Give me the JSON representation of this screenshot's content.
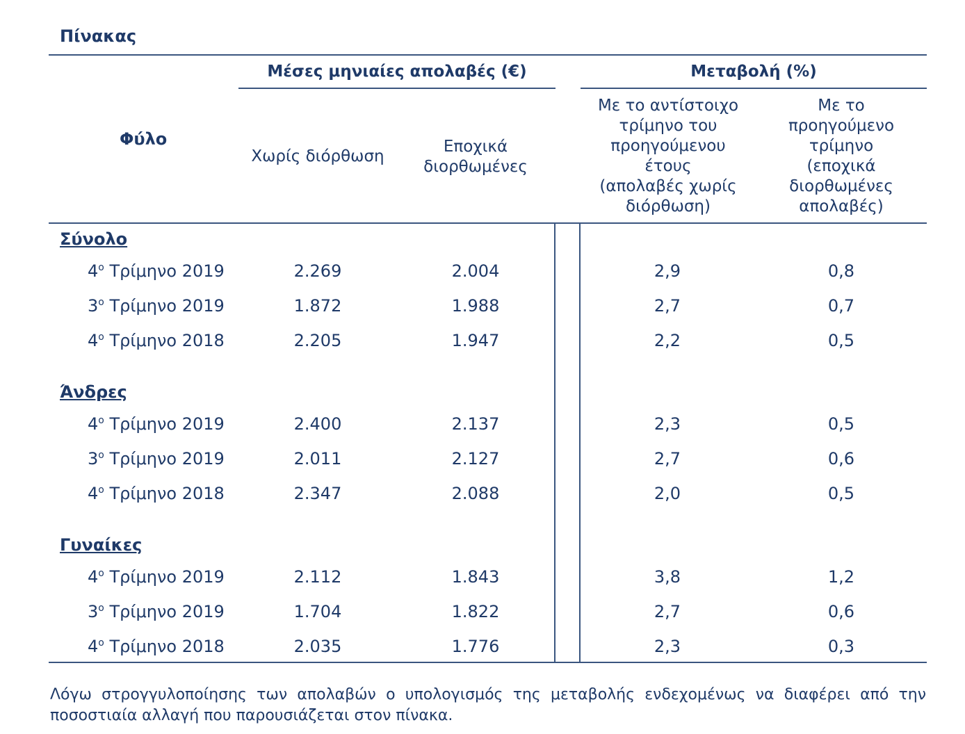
{
  "table": {
    "title": "Πίνακας",
    "header": {
      "first_col": "Φύλο",
      "group_earnings": "Μέσες μηνιαίες απολαβές (€)",
      "group_change": "Μεταβολή (%)",
      "col_unadjusted": "Χωρίς διόρθωση",
      "col_seasonal": "Εποχικά\nδιορθωμένες",
      "col_yoy": "Με το αντίστοιχο\nτρίμηνο του\nπρoηγούμενου\nέτους\n(απολαβές χωρίς\nδιόρθωση)",
      "col_qoq": "Με το\nπροηγούμενο\nτρίμηνο\n(εποχικά\nδιορθωμένες\nαπολαβές)"
    },
    "sections": [
      {
        "label": "Σύνολο",
        "rows": [
          {
            "q": "4",
            "period": "Τρίμηνο 2019",
            "unadjusted": "2.269",
            "seasonal": "2.004",
            "yoy": "2,9",
            "qoq": "0,8"
          },
          {
            "q": "3",
            "period": "Τρίμηνο 2019",
            "unadjusted": "1.872",
            "seasonal": "1.988",
            "yoy": "2,7",
            "qoq": "0,7"
          },
          {
            "q": "4",
            "period": "Τρίμηνο 2018",
            "unadjusted": "2.205",
            "seasonal": "1.947",
            "yoy": "2,2",
            "qoq": "0,5"
          }
        ]
      },
      {
        "label": "Άνδρες",
        "rows": [
          {
            "q": "4",
            "period": "Τρίμηνο 2019",
            "unadjusted": "2.400",
            "seasonal": "2.137",
            "yoy": "2,3",
            "qoq": "0,5"
          },
          {
            "q": "3",
            "period": "Τρίμηνο 2019",
            "unadjusted": "2.011",
            "seasonal": "2.127",
            "yoy": "2,7",
            "qoq": "0,6"
          },
          {
            "q": "4",
            "period": "Τρίμηνο 2018",
            "unadjusted": "2.347",
            "seasonal": "2.088",
            "yoy": "2,0",
            "qoq": "0,5"
          }
        ]
      },
      {
        "label": "Γυναίκες",
        "rows": [
          {
            "q": "4",
            "period": "Τρίμηνο 2019",
            "unadjusted": "2.112",
            "seasonal": "1.843",
            "yoy": "3,8",
            "qoq": "1,2"
          },
          {
            "q": "3",
            "period": "Τρίμηνο 2019",
            "unadjusted": "1.704",
            "seasonal": "1.822",
            "yoy": "2,7",
            "qoq": "0,6"
          },
          {
            "q": "4",
            "period": "Τρίμηνο 2018",
            "unadjusted": "2.035",
            "seasonal": "1.776",
            "yoy": "2,3",
            "qoq": "0,3"
          }
        ]
      }
    ],
    "ordinal_mark": "ο"
  },
  "footnote": "Λόγω στρογγυλοποίησης των απολαβών ο υπολογισμός της μεταβολής ενδεχομένως να διαφέρει από την ποσοστιαία αλλαγή που παρουσιάζεται στον πίνακα.",
  "colors": {
    "text": "#1f3a68",
    "rule": "#3a557f"
  }
}
